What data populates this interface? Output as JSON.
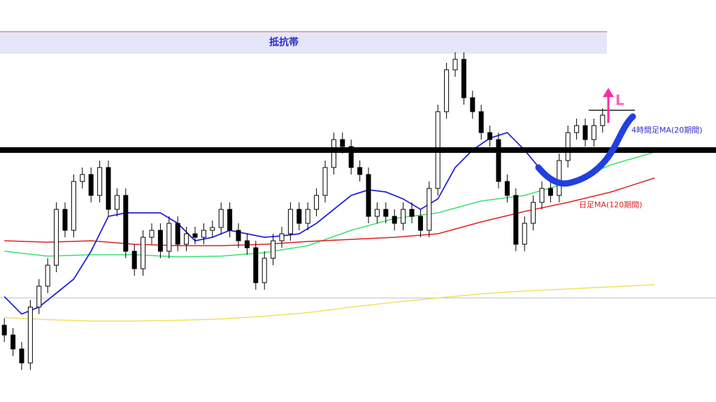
{
  "chart_data": {
    "type": "candlestick",
    "xlim": [
      -0.5,
      82.08
    ],
    "ylim": [
      0,
      576
    ],
    "up_color": "#ffffff",
    "down_color": "#000000",
    "open": [
      110,
      96,
      76,
      56,
      136,
      166,
      196,
      276,
      246,
      316,
      326,
      296,
      336,
      276,
      296,
      216,
      191,
      236,
      246,
      216,
      256,
      226,
      241,
      236,
      246,
      250,
      276,
      246,
      231,
      221,
      171,
      206,
      231,
      241,
      276,
      256,
      276,
      296,
      336,
      376,
      366,
      336,
      326,
      266,
      276,
      266,
      256,
      276,
      266,
      246,
      306,
      416,
      476,
      491,
      436,
      416,
      386,
      376,
      316,
      296,
      226,
      256,
      286,
      306,
      296,
      346,
      386,
      396,
      376,
      396
    ],
    "high": [
      120,
      106,
      86,
      146,
      176,
      206,
      286,
      286,
      326,
      336,
      336,
      346,
      346,
      306,
      306,
      226,
      246,
      256,
      256,
      266,
      266,
      251,
      251,
      256,
      260,
      286,
      286,
      256,
      241,
      231,
      216,
      241,
      251,
      286,
      286,
      286,
      306,
      346,
      386,
      386,
      376,
      346,
      336,
      286,
      286,
      276,
      286,
      286,
      276,
      316,
      426,
      486,
      501,
      501,
      446,
      426,
      396,
      386,
      326,
      306,
      266,
      296,
      316,
      316,
      356,
      396,
      406,
      406,
      406,
      421
    ],
    "low": [
      86,
      66,
      46,
      46,
      126,
      156,
      186,
      236,
      236,
      306,
      286,
      286,
      266,
      266,
      206,
      181,
      181,
      226,
      206,
      206,
      216,
      216,
      226,
      226,
      236,
      240,
      236,
      221,
      211,
      161,
      161,
      196,
      221,
      231,
      246,
      246,
      266,
      286,
      326,
      356,
      326,
      316,
      256,
      256,
      256,
      246,
      246,
      256,
      236,
      236,
      296,
      406,
      466,
      426,
      406,
      376,
      366,
      306,
      286,
      216,
      216,
      246,
      276,
      286,
      286,
      336,
      376,
      366,
      366,
      386
    ],
    "close": [
      96,
      76,
      56,
      136,
      166,
      196,
      276,
      246,
      316,
      326,
      296,
      336,
      276,
      296,
      216,
      191,
      236,
      246,
      216,
      256,
      226,
      241,
      236,
      246,
      250,
      276,
      246,
      231,
      221,
      171,
      206,
      231,
      241,
      276,
      256,
      276,
      296,
      336,
      376,
      366,
      336,
      326,
      266,
      276,
      266,
      256,
      276,
      266,
      246,
      306,
      416,
      476,
      491,
      436,
      416,
      386,
      376,
      316,
      296,
      226,
      256,
      286,
      306,
      296,
      346,
      386,
      396,
      376,
      396,
      411
    ],
    "series": [
      {
        "color": "#f0e060",
        "x": [
          0,
          5,
          10,
          15,
          20,
          25,
          30,
          35,
          40,
          45,
          50,
          55,
          60,
          65,
          70,
          75
        ],
        "values": [
          121,
          118,
          116,
          116,
          117,
          119,
          123,
          128,
          136,
          143,
          149,
          155,
          159,
          162,
          165,
          168
        ]
      },
      {
        "color": "#3de070",
        "x": [
          0,
          5,
          10,
          15,
          20,
          25,
          30,
          35,
          40,
          45,
          50,
          55,
          60,
          65,
          70,
          75
        ],
        "values": [
          216,
          209,
          211,
          211,
          208,
          209,
          214,
          224,
          246,
          263,
          271,
          288,
          296,
          314,
          340,
          358
        ]
      },
      {
        "name": "日足MA(120期間)",
        "color": "#e02020",
        "x": [
          0,
          5,
          10,
          15,
          20,
          25,
          30,
          35,
          40,
          45,
          50,
          55,
          60,
          65,
          70,
          75
        ],
        "values": [
          231,
          229,
          231,
          226,
          224,
          224,
          226,
          230,
          233,
          236,
          241,
          258,
          273,
          286,
          301,
          321
        ]
      },
      {
        "name": "4時間足MA(20期間)",
        "color": "#2424d8",
        "x": [
          0,
          2,
          4,
          6,
          8,
          10,
          12,
          14,
          16,
          18,
          20,
          22,
          24,
          26,
          28,
          30,
          32,
          34,
          36,
          38,
          40,
          42,
          44,
          46,
          48,
          50,
          52,
          54,
          56,
          58,
          60,
          62,
          64
        ],
        "values": [
          151,
          126,
          136,
          156,
          176,
          216,
          266,
          271,
          271,
          271,
          256,
          231,
          236,
          246,
          241,
          236,
          238,
          241,
          256,
          276,
          296,
          304,
          301,
          291,
          276,
          291,
          336,
          361,
          378,
          386,
          361,
          331,
          311
        ]
      }
    ],
    "annotations": {
      "band": "抵抗帯",
      "marker": "L"
    }
  }
}
